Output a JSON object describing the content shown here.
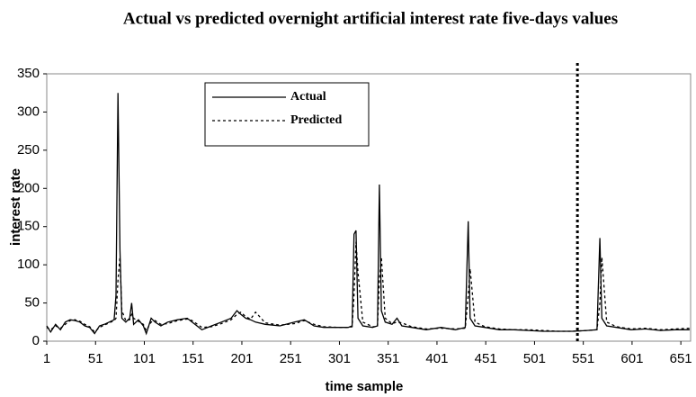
{
  "chart_data": {
    "type": "line",
    "title": "Actual vs predicted overnight artificial interest rate five-days values",
    "x_label": "time sample",
    "y_label": "interest rate",
    "x": [
      1,
      5,
      10,
      15,
      20,
      25,
      30,
      35,
      40,
      45,
      50,
      55,
      60,
      65,
      70,
      72,
      74,
      76,
      78,
      82,
      86,
      88,
      90,
      95,
      100,
      103,
      108,
      112,
      118,
      125,
      135,
      145,
      150,
      160,
      170,
      180,
      190,
      196,
      200,
      205,
      210,
      215,
      225,
      240,
      255,
      265,
      275,
      285,
      300,
      310,
      314,
      316,
      318,
      320,
      325,
      335,
      340,
      342,
      344,
      348,
      355,
      360,
      365,
      375,
      390,
      405,
      420,
      430,
      433,
      435,
      440,
      450,
      465,
      480,
      495,
      510,
      525,
      540,
      555,
      565,
      568,
      570,
      575,
      585,
      600,
      615,
      630,
      645,
      660
    ],
    "series": [
      {
        "name": "Actual",
        "color": "#000000",
        "dash": "solid",
        "values": [
          20,
          12,
          22,
          15,
          25,
          28,
          27,
          25,
          20,
          18,
          10,
          20,
          22,
          25,
          28,
          60,
          325,
          120,
          30,
          25,
          30,
          50,
          22,
          28,
          20,
          10,
          30,
          25,
          20,
          25,
          28,
          30,
          25,
          15,
          20,
          25,
          30,
          40,
          35,
          30,
          28,
          25,
          22,
          20,
          25,
          28,
          20,
          18,
          18,
          18,
          20,
          140,
          145,
          30,
          20,
          18,
          20,
          205,
          40,
          25,
          22,
          30,
          20,
          18,
          15,
          18,
          15,
          18,
          157,
          30,
          20,
          18,
          15,
          15,
          14,
          13,
          13,
          13,
          14,
          15,
          135,
          30,
          20,
          18,
          15,
          16,
          14,
          15,
          15
        ]
      },
      {
        "name": "Predicted",
        "color": "#000000",
        "dash": "dotted",
        "values": [
          18,
          15,
          20,
          17,
          22,
          27,
          28,
          26,
          22,
          19,
          12,
          18,
          21,
          24,
          27,
          30,
          80,
          110,
          40,
          27,
          28,
          35,
          30,
          26,
          22,
          14,
          25,
          27,
          22,
          23,
          27,
          29,
          27,
          18,
          19,
          23,
          28,
          35,
          38,
          32,
          29,
          38,
          24,
          21,
          23,
          27,
          22,
          19,
          18,
          18,
          19,
          60,
          130,
          90,
          25,
          19,
          19,
          80,
          110,
          30,
          23,
          25,
          24,
          19,
          16,
          17,
          16,
          17,
          60,
          95,
          25,
          19,
          16,
          15,
          15,
          14,
          13,
          13,
          14,
          15,
          50,
          110,
          25,
          19,
          16,
          17,
          15,
          16,
          17
        ]
      }
    ],
    "vertical_line": 545,
    "xlim": [
      1,
      661
    ],
    "xticks": [
      1,
      51,
      101,
      151,
      201,
      251,
      301,
      351,
      401,
      451,
      501,
      551,
      601,
      651
    ],
    "ylim": [
      0,
      350
    ],
    "yticks": [
      0,
      50,
      100,
      150,
      200,
      250,
      300,
      350
    ],
    "legend": "upper-left"
  }
}
